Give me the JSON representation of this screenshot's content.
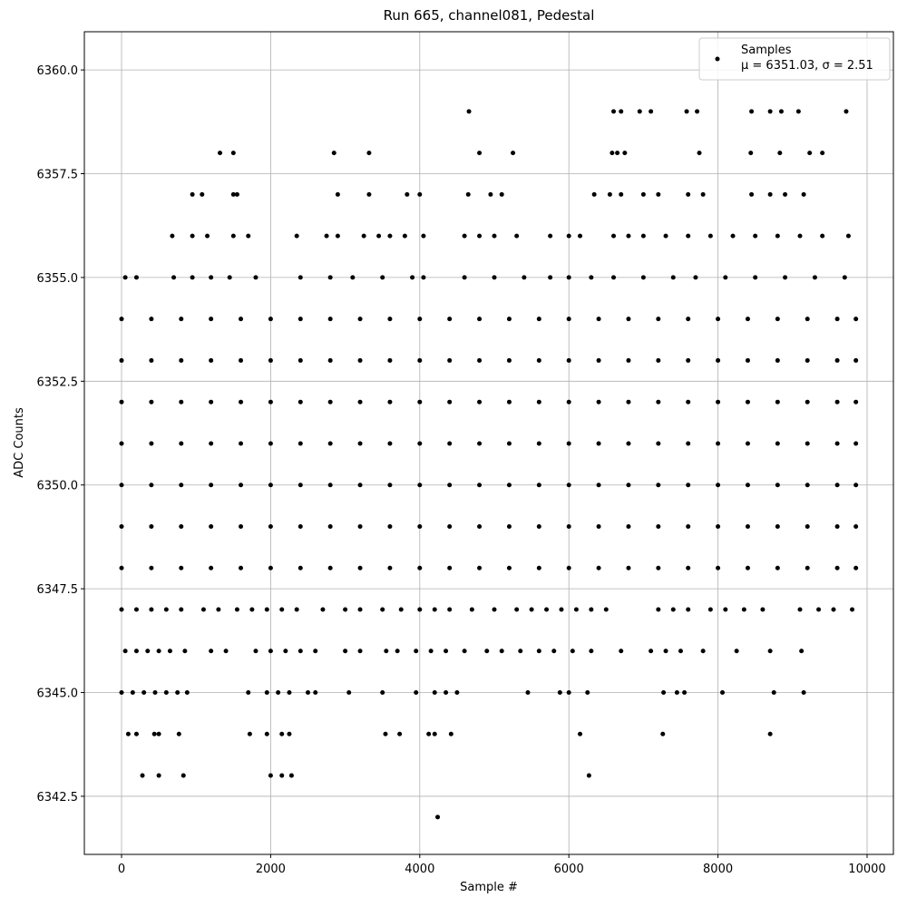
{
  "chart_data": {
    "type": "scatter",
    "title": "Run 665, channel081, Pedestal",
    "x_label": "Sample #",
    "y_label": "ADC Counts",
    "legend_note": "μ = 6351.03, σ = 2.51",
    "legend_position": "upper right",
    "grid": true,
    "xlim": [
      -499,
      10353
    ],
    "ylim": [
      6341.1,
      6360.92
    ],
    "xticks": [
      0,
      2000,
      4000,
      6000,
      8000,
      10000
    ],
    "yticks": [
      {
        "value": 6342.5,
        "label": "6342.5"
      },
      {
        "value": 6345,
        "label": "6345.0"
      },
      {
        "value": 6347.5,
        "label": "6347.5"
      },
      {
        "value": 6350,
        "label": "6350.0"
      },
      {
        "value": 6352.5,
        "label": "6352.5"
      },
      {
        "value": 6355,
        "label": "6355.0"
      },
      {
        "value": 6357.5,
        "label": "6357.5"
      },
      {
        "value": 6360,
        "label": "6360.0"
      }
    ],
    "series": [
      {
        "name": "Samples",
        "color": "#000000",
        "x": [
          4240,
          280,
          500,
          830,
          2000,
          2150,
          2280,
          6270,
          90,
          200,
          440,
          500,
          770,
          1720,
          1950,
          2150,
          2250,
          3540,
          3730,
          4120,
          4200,
          4420,
          6150,
          7260,
          8700,
          0,
          150,
          300,
          450,
          600,
          750,
          880,
          1700,
          1950,
          2100,
          2250,
          2500,
          2600,
          3050,
          3500,
          3950,
          4200,
          4350,
          4500,
          5450,
          5880,
          6000,
          6250,
          7270,
          7450,
          7550,
          8060,
          8750,
          9150,
          50,
          200,
          350,
          500,
          650,
          850,
          1200,
          1400,
          1800,
          2000,
          2200,
          2400,
          2600,
          3000,
          3200,
          3550,
          3700,
          3950,
          4150,
          4350,
          4600,
          4900,
          5100,
          5350,
          5600,
          5800,
          6050,
          6300,
          6700,
          7100,
          7300,
          7500,
          7800,
          8250,
          8700,
          9120,
          0,
          200,
          400,
          600,
          800,
          1100,
          1300,
          1550,
          1750,
          1950,
          2150,
          2350,
          2700,
          3000,
          3200,
          3500,
          3750,
          4000,
          4200,
          4400,
          4700,
          5000,
          5300,
          5500,
          5700,
          5900,
          6100,
          6300,
          6500,
          7200,
          7400,
          7600,
          7900,
          8100,
          8350,
          8600,
          9100,
          9350,
          9550,
          9800,
          0,
          400,
          800,
          1200,
          1600,
          2000,
          2400,
          2800,
          3200,
          3600,
          4000,
          4400,
          4800,
          5200,
          5600,
          6000,
          6400,
          6800,
          7200,
          7600,
          8000,
          8400,
          8800,
          9200,
          9600,
          9850,
          0,
          400,
          800,
          1200,
          1600,
          2000,
          2400,
          2800,
          3200,
          3600,
          4000,
          4400,
          4800,
          5200,
          5600,
          6000,
          6400,
          6800,
          7200,
          7600,
          8000,
          8400,
          8800,
          9200,
          9600,
          9850,
          0,
          400,
          800,
          1200,
          1600,
          2000,
          2400,
          2800,
          3200,
          3600,
          4000,
          4400,
          4800,
          5200,
          5600,
          6000,
          6400,
          6800,
          7200,
          7600,
          8000,
          8400,
          8800,
          9200,
          9600,
          9850,
          0,
          400,
          800,
          1200,
          1600,
          2000,
          2400,
          2800,
          3200,
          3600,
          4000,
          4400,
          4800,
          5200,
          5600,
          6000,
          6400,
          6800,
          7200,
          7600,
          8000,
          8400,
          8800,
          9200,
          9600,
          9850,
          0,
          400,
          800,
          1200,
          1600,
          2000,
          2400,
          2800,
          3200,
          3600,
          4000,
          4400,
          4800,
          5200,
          5600,
          6000,
          6400,
          6800,
          7200,
          7600,
          8000,
          8400,
          8800,
          9200,
          9600,
          9850,
          0,
          400,
          800,
          1200,
          1600,
          2000,
          2400,
          2800,
          3200,
          3600,
          4000,
          4400,
          4800,
          5200,
          5600,
          6000,
          6400,
          6800,
          7200,
          7600,
          8000,
          8400,
          8800,
          9200,
          9600,
          9850,
          0,
          400,
          800,
          1200,
          1600,
          2000,
          2400,
          2800,
          3200,
          3600,
          4000,
          4400,
          4800,
          5200,
          5600,
          6000,
          6400,
          6800,
          7200,
          7600,
          8000,
          8400,
          8800,
          9200,
          9600,
          9850,
          50,
          200,
          700,
          950,
          1200,
          1450,
          1800,
          2400,
          2800,
          3100,
          3500,
          3900,
          4050,
          4600,
          5000,
          5400,
          5750,
          6000,
          6300,
          6600,
          7000,
          7400,
          7700,
          8100,
          8500,
          8900,
          9300,
          9700,
          680,
          950,
          1150,
          1500,
          1700,
          2350,
          2750,
          2900,
          3250,
          3450,
          3600,
          3800,
          4050,
          4600,
          4800,
          5000,
          5300,
          5750,
          6000,
          6150,
          6600,
          6800,
          7000,
          7300,
          7600,
          7900,
          8200,
          8500,
          8800,
          9100,
          9400,
          9750,
          950,
          1080,
          1500,
          1550,
          2900,
          3320,
          3830,
          4000,
          4650,
          4950,
          5100,
          6340,
          6550,
          6700,
          7000,
          7200,
          7600,
          7800,
          8450,
          8700,
          8900,
          9150,
          1320,
          1500,
          2850,
          3320,
          4800,
          5250,
          6580,
          6650,
          6750,
          7750,
          8440,
          8830,
          9230,
          9400,
          4660,
          6600,
          6700,
          6950,
          7100,
          7580,
          7720,
          8450,
          8700,
          8850,
          9080,
          9720
        ],
        "values": [
          6342,
          6343,
          6343,
          6343,
          6343,
          6343,
          6343,
          6343,
          6344,
          6344,
          6344,
          6344,
          6344,
          6344,
          6344,
          6344,
          6344,
          6344,
          6344,
          6344,
          6344,
          6344,
          6344,
          6344,
          6344,
          6345,
          6345,
          6345,
          6345,
          6345,
          6345,
          6345,
          6345,
          6345,
          6345,
          6345,
          6345,
          6345,
          6345,
          6345,
          6345,
          6345,
          6345,
          6345,
          6345,
          6345,
          6345,
          6345,
          6345,
          6345,
          6345,
          6345,
          6345,
          6345,
          6346,
          6346,
          6346,
          6346,
          6346,
          6346,
          6346,
          6346,
          6346,
          6346,
          6346,
          6346,
          6346,
          6346,
          6346,
          6346,
          6346,
          6346,
          6346,
          6346,
          6346,
          6346,
          6346,
          6346,
          6346,
          6346,
          6346,
          6346,
          6346,
          6346,
          6346,
          6346,
          6346,
          6346,
          6346,
          6346,
          6347,
          6347,
          6347,
          6347,
          6347,
          6347,
          6347,
          6347,
          6347,
          6347,
          6347,
          6347,
          6347,
          6347,
          6347,
          6347,
          6347,
          6347,
          6347,
          6347,
          6347,
          6347,
          6347,
          6347,
          6347,
          6347,
          6347,
          6347,
          6347,
          6347,
          6347,
          6347,
          6347,
          6347,
          6347,
          6347,
          6347,
          6347,
          6347,
          6347,
          6348,
          6348,
          6348,
          6348,
          6348,
          6348,
          6348,
          6348,
          6348,
          6348,
          6348,
          6348,
          6348,
          6348,
          6348,
          6348,
          6348,
          6348,
          6348,
          6348,
          6348,
          6348,
          6348,
          6348,
          6348,
          6348,
          6349,
          6349,
          6349,
          6349,
          6349,
          6349,
          6349,
          6349,
          6349,
          6349,
          6349,
          6349,
          6349,
          6349,
          6349,
          6349,
          6349,
          6349,
          6349,
          6349,
          6349,
          6349,
          6349,
          6349,
          6349,
          6349,
          6350,
          6350,
          6350,
          6350,
          6350,
          6350,
          6350,
          6350,
          6350,
          6350,
          6350,
          6350,
          6350,
          6350,
          6350,
          6350,
          6350,
          6350,
          6350,
          6350,
          6350,
          6350,
          6350,
          6350,
          6350,
          6350,
          6351,
          6351,
          6351,
          6351,
          6351,
          6351,
          6351,
          6351,
          6351,
          6351,
          6351,
          6351,
          6351,
          6351,
          6351,
          6351,
          6351,
          6351,
          6351,
          6351,
          6351,
          6351,
          6351,
          6351,
          6351,
          6351,
          6352,
          6352,
          6352,
          6352,
          6352,
          6352,
          6352,
          6352,
          6352,
          6352,
          6352,
          6352,
          6352,
          6352,
          6352,
          6352,
          6352,
          6352,
          6352,
          6352,
          6352,
          6352,
          6352,
          6352,
          6352,
          6352,
          6353,
          6353,
          6353,
          6353,
          6353,
          6353,
          6353,
          6353,
          6353,
          6353,
          6353,
          6353,
          6353,
          6353,
          6353,
          6353,
          6353,
          6353,
          6353,
          6353,
          6353,
          6353,
          6353,
          6353,
          6353,
          6353,
          6354,
          6354,
          6354,
          6354,
          6354,
          6354,
          6354,
          6354,
          6354,
          6354,
          6354,
          6354,
          6354,
          6354,
          6354,
          6354,
          6354,
          6354,
          6354,
          6354,
          6354,
          6354,
          6354,
          6354,
          6354,
          6354,
          6355,
          6355,
          6355,
          6355,
          6355,
          6355,
          6355,
          6355,
          6355,
          6355,
          6355,
          6355,
          6355,
          6355,
          6355,
          6355,
          6355,
          6355,
          6355,
          6355,
          6355,
          6355,
          6355,
          6355,
          6355,
          6355,
          6355,
          6355,
          6356,
          6356,
          6356,
          6356,
          6356,
          6356,
          6356,
          6356,
          6356,
          6356,
          6356,
          6356,
          6356,
          6356,
          6356,
          6356,
          6356,
          6356,
          6356,
          6356,
          6356,
          6356,
          6356,
          6356,
          6356,
          6356,
          6356,
          6356,
          6356,
          6356,
          6356,
          6356,
          6357,
          6357,
          6357,
          6357,
          6357,
          6357,
          6357,
          6357,
          6357,
          6357,
          6357,
          6357,
          6357,
          6357,
          6357,
          6357,
          6357,
          6357,
          6357,
          6357,
          6357,
          6357,
          6358,
          6358,
          6358,
          6358,
          6358,
          6358,
          6358,
          6358,
          6358,
          6358,
          6358,
          6358,
          6358,
          6358,
          6359,
          6359,
          6359,
          6359,
          6359,
          6359,
          6359,
          6359,
          6359,
          6359,
          6359,
          6359
        ]
      }
    ]
  }
}
